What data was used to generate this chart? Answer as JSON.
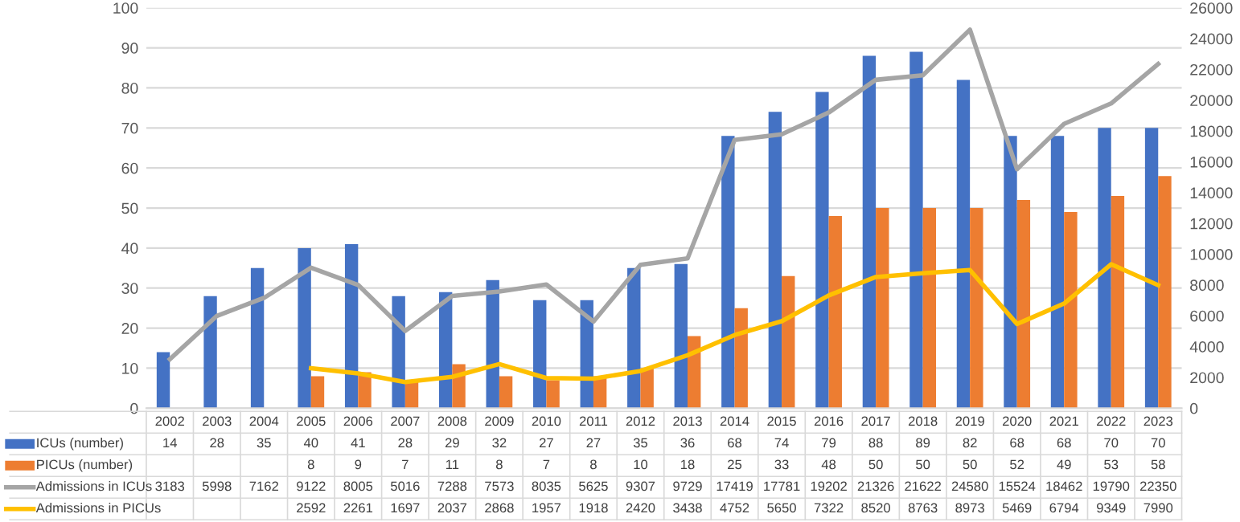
{
  "chart_data": {
    "type": "bar",
    "categories": [
      "2002",
      "2003",
      "2004",
      "2005",
      "2006",
      "2007",
      "2008",
      "2009",
      "2010",
      "2011",
      "2012",
      "2013",
      "2014",
      "2015",
      "2016",
      "2017",
      "2018",
      "2019",
      "2020",
      "2021",
      "2022",
      "2023"
    ],
    "series": [
      {
        "name": "ICUs (number)",
        "color": "#4472c4",
        "values": [
          14,
          28,
          35,
          40,
          41,
          28,
          29,
          32,
          27,
          27,
          35,
          36,
          68,
          74,
          79,
          88,
          89,
          82,
          68,
          68,
          70,
          70
        ]
      },
      {
        "name": "PICUs (number)",
        "color": "#ed7d31",
        "values": [
          null,
          null,
          null,
          8,
          9,
          7,
          11,
          8,
          7,
          8,
          10,
          18,
          25,
          33,
          48,
          50,
          50,
          50,
          52,
          49,
          53,
          58
        ]
      },
      {
        "name": "Admissions in ICUs",
        "type": "line",
        "axis": "y2",
        "color": "#a5a5a5",
        "values": [
          3183,
          5998,
          7162,
          9122,
          8005,
          5016,
          7288,
          7573,
          8035,
          5625,
          9307,
          9729,
          17419,
          17781,
          19202,
          21326,
          21622,
          24580,
          15524,
          18462,
          19790,
          22350
        ]
      },
      {
        "name": "Admissions in PICUs",
        "type": "line",
        "axis": "y2",
        "color": "#ffc000",
        "values": [
          null,
          null,
          null,
          2592,
          2261,
          1697,
          2037,
          2868,
          1957,
          1918,
          2420,
          3438,
          4752,
          5650,
          7322,
          8520,
          8763,
          8973,
          5469,
          6794,
          9349,
          7990
        ]
      }
    ],
    "ylim": [
      0,
      100
    ],
    "yticks": [
      0,
      10,
      20,
      30,
      40,
      50,
      60,
      70,
      80,
      90,
      100
    ],
    "y2lim": [
      0,
      26000
    ],
    "y2ticks": [
      0,
      2000,
      4000,
      6000,
      8000,
      10000,
      12000,
      14000,
      16000,
      18000,
      20000,
      22000,
      24000,
      26000
    ],
    "grid": "y",
    "legend": "bottom",
    "data_labels": true,
    "marker": "none",
    "line_style": "solid"
  }
}
